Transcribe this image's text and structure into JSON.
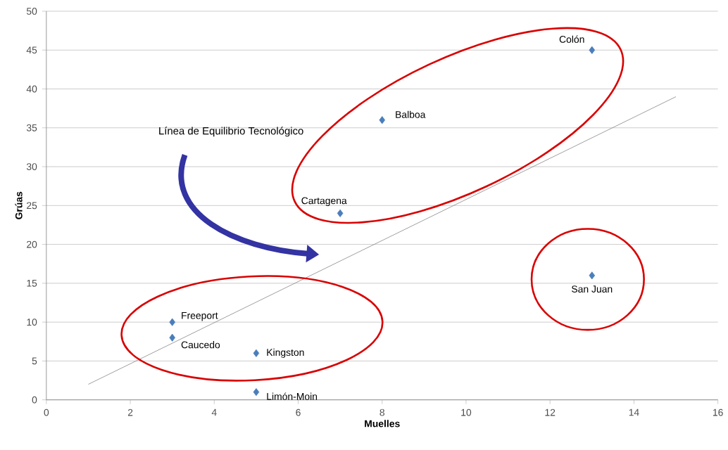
{
  "chart_data": {
    "type": "scatter",
    "xlabel": "Muelles",
    "ylabel": "Grúas",
    "xlim": [
      0,
      16
    ],
    "ylim": [
      0,
      50
    ],
    "xticks": [
      0,
      2,
      4,
      6,
      8,
      10,
      12,
      14,
      16
    ],
    "yticks": [
      0,
      5,
      10,
      15,
      20,
      25,
      30,
      35,
      40,
      45,
      50
    ],
    "grid": "y",
    "marker": "diamond",
    "series": [
      {
        "color": "#4a7ebb",
        "x": [
          3,
          3,
          5,
          5,
          7,
          8,
          13,
          13
        ],
        "values": [
          10,
          8,
          6,
          1,
          24,
          36,
          45,
          16
        ]
      },
      {
        "type": "line",
        "color": "#868686",
        "marker": "none",
        "x": [
          1,
          15
        ],
        "values": [
          2,
          39
        ]
      }
    ],
    "annotations": [
      {
        "text": "Freeport",
        "x": 3,
        "y": 10
      },
      {
        "text": "Caucedo",
        "x": 3,
        "y": 8
      },
      {
        "text": "Kingston",
        "x": 5,
        "y": 6
      },
      {
        "text": "Limón-Moin",
        "x": 5,
        "y": 1
      },
      {
        "text": "Cartagena",
        "x": 7,
        "y": 24
      },
      {
        "text": "Balboa",
        "x": 8,
        "y": 36
      },
      {
        "text": "Colón",
        "x": 13,
        "y": 45
      },
      {
        "text": "San Juan",
        "x": 13,
        "y": 16
      },
      "Línea de Equilibrio Tecnológico"
    ]
  }
}
